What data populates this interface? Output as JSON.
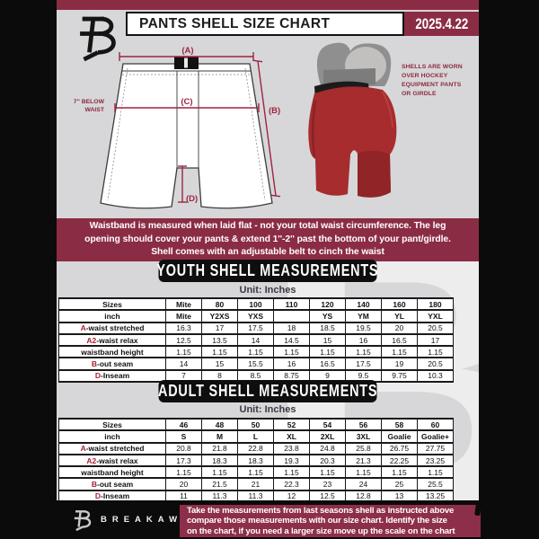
{
  "colors": {
    "maroon": "#8b2c45",
    "black": "#0b0b0b",
    "light_gray": "#d7d7d9",
    "shell_red": "#a62c2e",
    "accent_text": "#9e2440"
  },
  "header": {
    "title": "PANTS SHELL SIZE CHART",
    "date": "2025.4.22"
  },
  "diagram": {
    "label_a": "(A)",
    "label_b": "(B)",
    "label_c": "(C)",
    "label_d": "(D)",
    "waist_note_l1": "7'' BELOW",
    "waist_note_l2": "WAIST"
  },
  "photo_note": {
    "l1": "SHELLS ARE WORN",
    "l2": "OVER HOCKEY",
    "l3": "EQUIPMENT PANTS",
    "l4": "OR GIRDLE"
  },
  "notice": {
    "l1": "Waistband is measured when laid flat - not your total waist circumference. The leg",
    "l2": "opening should cover your pants & extend 1''-2'' past the bottom of your pant/girdle.",
    "l3": "Shell comes with an adjustable belt to cinch the waist"
  },
  "youth": {
    "title": "YOUTH SHELL MEASUREMENTS",
    "unit": "Unit: Inches",
    "table": {
      "rows": [
        {
          "label": "Sizes",
          "hdr": true,
          "values": [
            "Mite",
            "80",
            "100",
            "110",
            "120",
            "140",
            "160",
            "180"
          ]
        },
        {
          "label": "inch",
          "hdr": true,
          "values": [
            "Mite",
            "Y2XS",
            "YXS",
            "",
            "YS",
            "YM",
            "YL",
            "YXL"
          ]
        },
        {
          "pfx": "A",
          "label": "-waist stretched",
          "values": [
            "16.3",
            "17",
            "17.5",
            "18",
            "18.5",
            "19.5",
            "20",
            "20.5"
          ]
        },
        {
          "pfx": "A2",
          "label": "-waist relax",
          "values": [
            "12.5",
            "13.5",
            "14",
            "14.5",
            "15",
            "16",
            "16.5",
            "17"
          ]
        },
        {
          "label": "waistband height",
          "values": [
            "1.15",
            "1.15",
            "1.15",
            "1.15",
            "1.15",
            "1.15",
            "1.15",
            "1.15"
          ]
        },
        {
          "pfx": "B",
          "label": "-out seam",
          "values": [
            "14",
            "15",
            "15.5",
            "16",
            "16.5",
            "17.5",
            "19",
            "20.5"
          ]
        },
        {
          "pfx": "D",
          "label": "-Inseam",
          "values": [
            "7",
            "8",
            "8.5",
            "8.75",
            "9",
            "9.5",
            "9.75",
            "10.3"
          ]
        }
      ]
    }
  },
  "adult": {
    "title": "ADULT SHELL MEASUREMENTS",
    "unit": "Unit: Inches",
    "table": {
      "rows": [
        {
          "label": "Sizes",
          "hdr": true,
          "values": [
            "46",
            "48",
            "50",
            "52",
            "54",
            "56",
            "58",
            "60"
          ]
        },
        {
          "label": "inch",
          "hdr": true,
          "values": [
            "S",
            "M",
            "L",
            "XL",
            "2XL",
            "3XL",
            "Goalie",
            "Goalie+"
          ]
        },
        {
          "pfx": "A",
          "label": "-waist stretched",
          "values": [
            "20.8",
            "21.8",
            "22.8",
            "23.8",
            "24.8",
            "25.8",
            "26.75",
            "27.75"
          ]
        },
        {
          "pfx": "A2",
          "label": "-waist relax",
          "values": [
            "17.3",
            "18.3",
            "18.3",
            "19.3",
            "20.3",
            "21.3",
            "22.25",
            "23.25"
          ]
        },
        {
          "label": "waistband height",
          "values": [
            "1.15",
            "1.15",
            "1.15",
            "1.15",
            "1.15",
            "1.15",
            "1.15",
            "1.15"
          ]
        },
        {
          "pfx": "B",
          "label": "-out seam",
          "values": [
            "20",
            "21.5",
            "21",
            "22.3",
            "23",
            "24",
            "25",
            "25.5"
          ]
        },
        {
          "pfx": "D",
          "label": "-Inseam",
          "values": [
            "11",
            "11.3",
            "11.3",
            "12",
            "12.5",
            "12.8",
            "13",
            "13.25"
          ]
        }
      ]
    }
  },
  "footer": {
    "brand": "BREAKAWAY",
    "l1": "Take the measurements from last seasons shell as instructed above",
    "l2": "compare those measurements  with our size chart. Identify the size",
    "l3": "on the chart, if you need a larger size move up the scale on the chart"
  },
  "watermark": "B"
}
